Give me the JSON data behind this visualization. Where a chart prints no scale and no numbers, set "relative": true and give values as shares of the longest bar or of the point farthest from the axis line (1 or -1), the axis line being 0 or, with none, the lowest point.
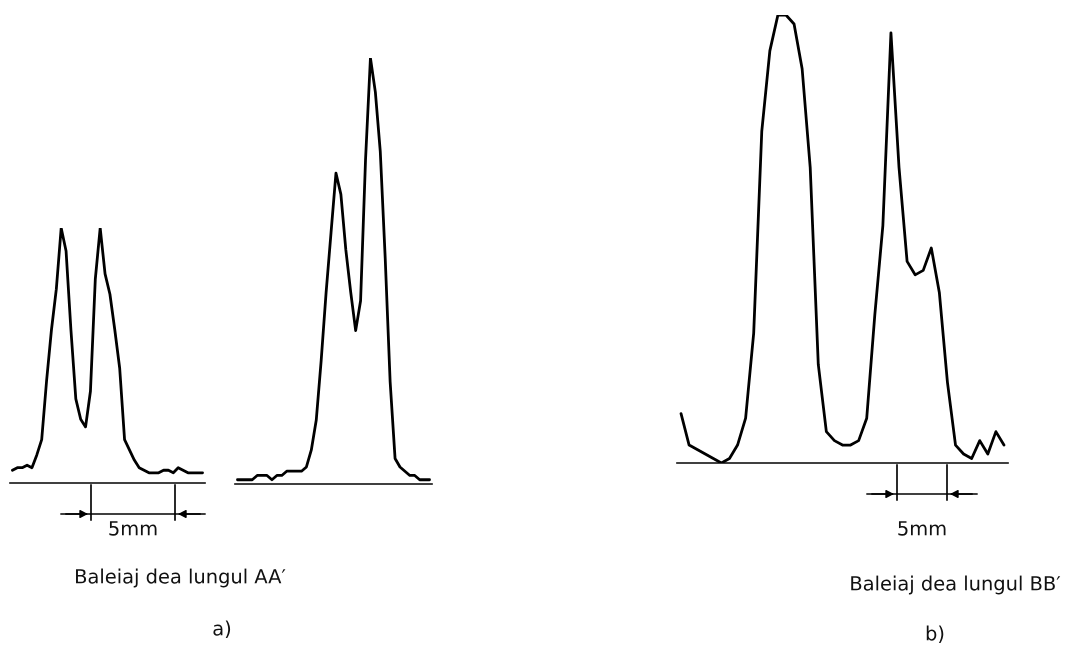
{
  "chart_data": [
    {
      "type": "line",
      "relative": true,
      "categories": [
        null,
        null,
        null,
        null,
        null,
        null,
        null,
        null,
        null,
        null,
        null,
        null,
        null,
        null,
        null,
        null,
        null,
        null,
        null,
        null,
        null,
        null,
        null,
        null,
        null,
        null,
        null,
        null,
        null,
        null,
        null,
        null,
        null,
        null,
        null,
        null,
        null,
        null,
        null,
        null
      ],
      "series": [
        {
          "color": "#000000",
          "values": [
            0.05,
            0.06,
            0.06,
            0.07,
            0.06,
            0.11,
            0.17,
            0.4,
            0.6,
            0.76,
            1.0,
            0.91,
            0.6,
            0.33,
            0.25,
            0.22,
            0.36,
            0.8,
            1.0,
            0.82,
            0.74,
            0.6,
            0.45,
            0.17,
            0.13,
            0.09,
            0.06,
            0.05,
            0.04,
            0.04,
            0.04,
            0.05,
            0.05,
            0.04,
            0.06,
            0.05,
            0.04,
            0.04,
            0.04,
            0.04
          ]
        }
      ],
      "annotations": [
        "5mm",
        "Baleiaj dea lungul AA′",
        "a)"
      ]
    },
    {
      "type": "line",
      "relative": true,
      "categories": [
        null,
        null,
        null,
        null,
        null,
        null,
        null,
        null,
        null,
        null,
        null,
        null,
        null,
        null,
        null,
        null,
        null,
        null,
        null,
        null,
        null,
        null,
        null,
        null,
        null,
        null,
        null,
        null,
        null,
        null,
        null,
        null,
        null,
        null,
        null,
        null,
        null,
        null,
        null,
        null
      ],
      "series": [
        {
          "color": "#000000",
          "values": [
            0.01,
            0.01,
            0.01,
            0.01,
            0.02,
            0.02,
            0.02,
            0.01,
            0.02,
            0.02,
            0.03,
            0.03,
            0.03,
            0.03,
            0.04,
            0.08,
            0.15,
            0.29,
            0.45,
            0.59,
            0.73,
            0.68,
            0.55,
            0.45,
            0.36,
            0.43,
            0.76,
            1.0,
            0.92,
            0.78,
            0.53,
            0.24,
            0.06,
            0.04,
            0.03,
            0.02,
            0.02,
            0.01,
            0.01,
            0.01
          ]
        }
      ]
    },
    {
      "type": "line",
      "relative": true,
      "categories": [
        null,
        null,
        null,
        null,
        null,
        null,
        null,
        null,
        null,
        null,
        null,
        null,
        null,
        null,
        null,
        null,
        null,
        null,
        null,
        null,
        null,
        null,
        null,
        null,
        null,
        null,
        null,
        null,
        null,
        null,
        null,
        null,
        null,
        null,
        null,
        null,
        null,
        null,
        null,
        null,
        null
      ],
      "series": [
        {
          "color": "#000000",
          "values": [
            0.11,
            0.04,
            0.03,
            0.02,
            0.01,
            0.0,
            0.01,
            0.04,
            0.1,
            0.29,
            0.74,
            0.92,
            1.0,
            1.0,
            0.98,
            0.88,
            0.66,
            0.22,
            0.07,
            0.05,
            0.04,
            0.04,
            0.05,
            0.1,
            0.33,
            0.53,
            0.96,
            0.66,
            0.45,
            0.42,
            0.43,
            0.48,
            0.38,
            0.18,
            0.04,
            0.02,
            0.01,
            0.05,
            0.02,
            0.07,
            0.04
          ]
        }
      ],
      "annotations": [
        "5mm",
        "Baleiaj dea lungul BB′",
        "b)"
      ]
    }
  ]
}
